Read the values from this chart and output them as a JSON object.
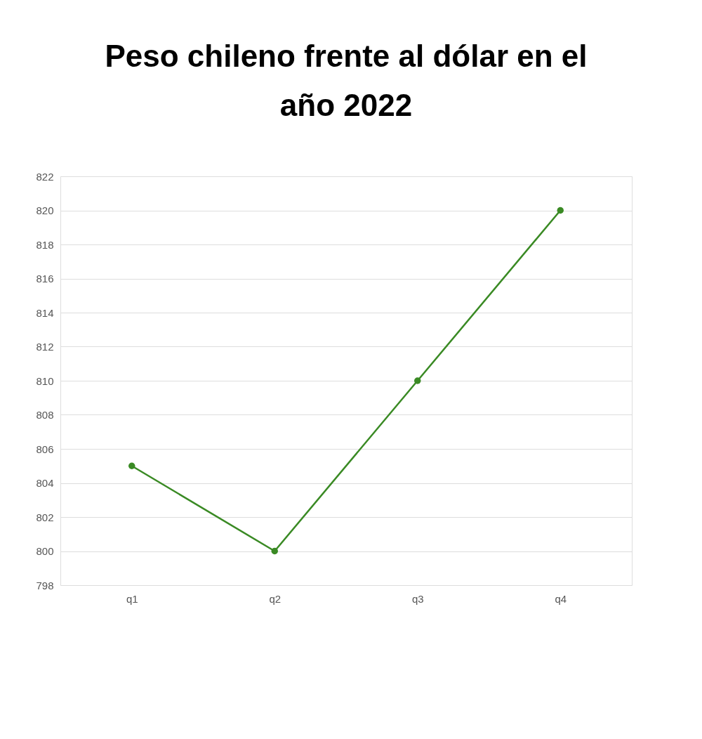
{
  "chart_data": {
    "type": "line",
    "title": "Peso chileno frente al dólar en el año 2022",
    "categories": [
      "q1",
      "q2",
      "q3",
      "q4"
    ],
    "series": [
      {
        "color": "#3a8a24",
        "values": [
          805,
          800,
          810,
          820
        ]
      }
    ],
    "ylim": [
      798,
      822
    ],
    "yticks": [
      798,
      800,
      802,
      804,
      806,
      808,
      810,
      812,
      814,
      816,
      818,
      820,
      822
    ],
    "grid": "y",
    "marker": "circle",
    "line_style": "solid"
  }
}
